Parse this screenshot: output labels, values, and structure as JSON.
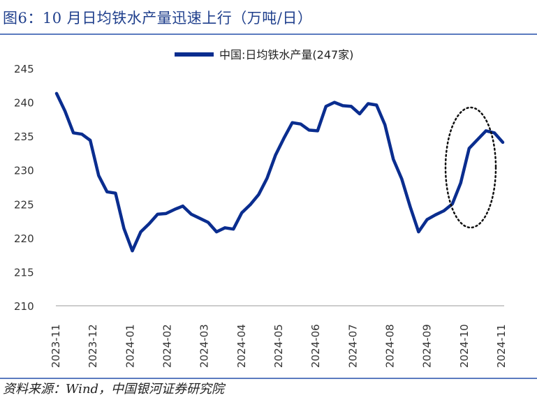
{
  "figure": {
    "title": "图6：10 月日均铁水产量迅速上行（万吨/日）",
    "source": "资料来源：Wind，中国银河证券研究院"
  },
  "colors": {
    "series": "#0a2d8f",
    "title": "#1f3f8c",
    "rule": "#5b7bbf",
    "axis": "#bbbbbb"
  },
  "chart_data": {
    "type": "line",
    "title": "",
    "xlabel": "",
    "ylabel": "",
    "ylim": [
      210,
      245
    ],
    "yticks": [
      "245",
      "240",
      "235",
      "230",
      "225",
      "220",
      "215",
      "210"
    ],
    "x_tick_labels": [
      "2023-11",
      "2023-12",
      "2024-01",
      "2024-02",
      "2024-03",
      "2024-04",
      "2024-05",
      "2024-06",
      "2024-07",
      "2024-08",
      "2024-09",
      "2024-10",
      "2024-11"
    ],
    "legend": {
      "position": "top-center"
    },
    "grid": false,
    "annotation": "dotted ellipse highlighting October 2024 rise",
    "series": [
      {
        "name": "中国:日均铁水产量(247家)",
        "values": [
          241.3,
          238.7,
          235.5,
          235.3,
          234.4,
          229.2,
          226.8,
          226.6,
          221.4,
          218.1,
          220.9,
          222.1,
          223.5,
          223.6,
          224.2,
          224.7,
          223.5,
          222.9,
          222.3,
          220.9,
          221.5,
          221.3,
          223.7,
          224.9,
          226.4,
          228.8,
          232.2,
          234.7,
          237.0,
          236.8,
          235.9,
          235.8,
          239.4,
          240.0,
          239.5,
          239.4,
          238.3,
          239.8,
          239.6,
          236.7,
          231.6,
          228.7,
          224.6,
          220.9,
          222.7,
          223.4,
          224.0,
          225.0,
          228.1,
          233.2,
          234.5,
          235.8,
          235.5,
          234.1
        ]
      }
    ]
  }
}
